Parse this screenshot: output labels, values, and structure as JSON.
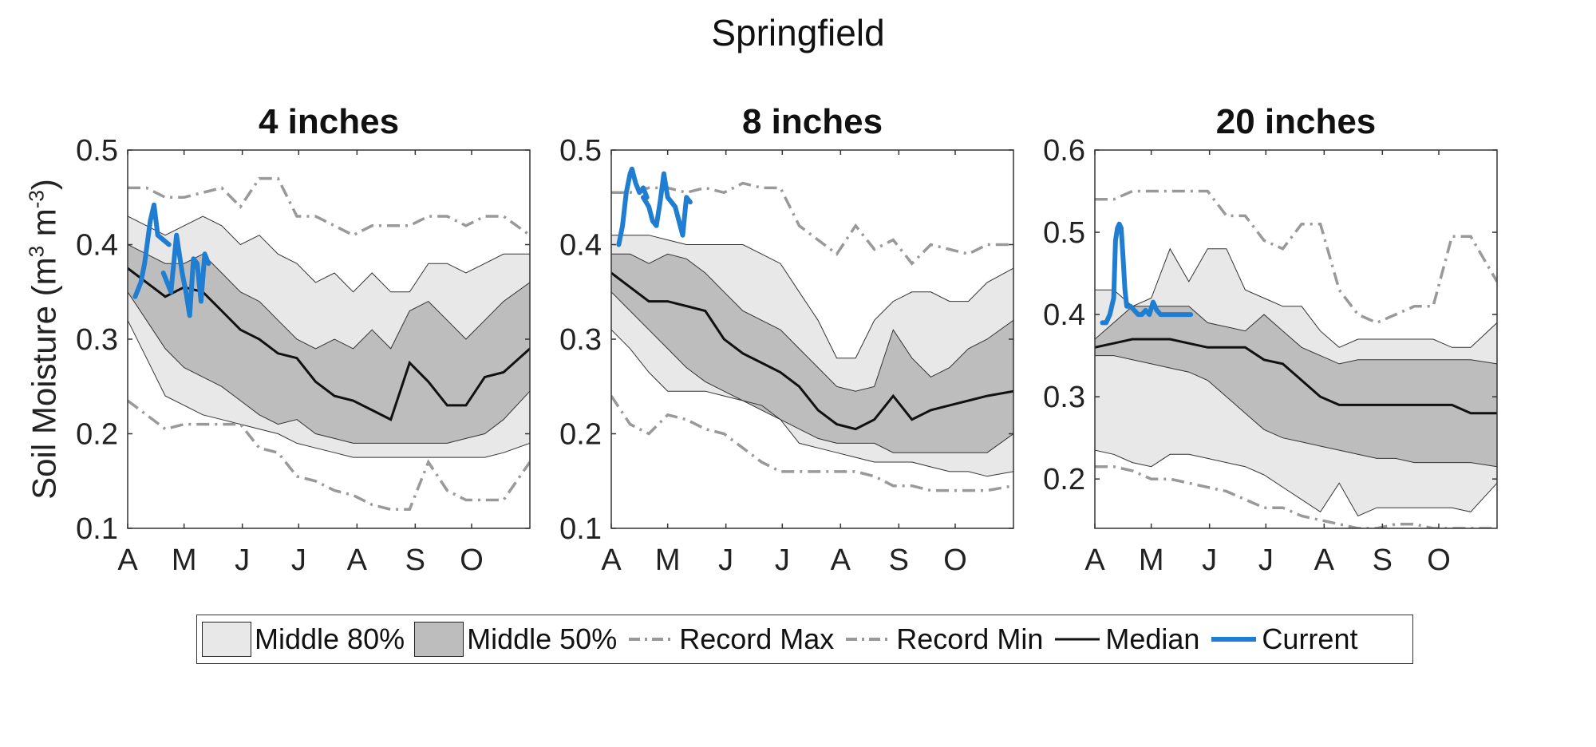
{
  "figure": {
    "title": "Springfield",
    "ylabel_text": "Soil Moisture (m",
    "ylabel_sup1": "3",
    "ylabel_mid": " m",
    "ylabel_sup2": "-3",
    "ylabel_end": ")"
  },
  "legend": [
    {
      "key": "p80",
      "label": "Middle 80%",
      "kind": "box",
      "color": "#e8e8e8"
    },
    {
      "key": "p50",
      "label": "Middle 50%",
      "kind": "box",
      "color": "#bdbdbd"
    },
    {
      "key": "rmax",
      "label": "Record Max",
      "kind": "dashdot",
      "color": "#999999"
    },
    {
      "key": "rmin",
      "label": "Record Min",
      "kind": "dashdot",
      "color": "#999999"
    },
    {
      "key": "median",
      "label": "Median",
      "kind": "line",
      "color": "#111111"
    },
    {
      "key": "current",
      "label": "Current",
      "kind": "thick",
      "color": "#1f7ed1"
    }
  ],
  "chart_data": [
    {
      "type": "area",
      "title": "4 inches",
      "ylim": [
        0.1,
        0.5
      ],
      "yticks": [
        0.1,
        0.2,
        0.3,
        0.4,
        0.5
      ],
      "xlim": [
        0,
        214
      ],
      "xticks": [
        0,
        30,
        61,
        91,
        122,
        153,
        183
      ],
      "xticklabels": [
        "A",
        "M",
        "J",
        "J",
        "A",
        "S",
        "O"
      ],
      "x": [
        0,
        10,
        20,
        30,
        40,
        50,
        60,
        70,
        80,
        90,
        100,
        110,
        120,
        130,
        140,
        150,
        160,
        170,
        180,
        190,
        200,
        214
      ],
      "p90": [
        0.43,
        0.42,
        0.41,
        0.42,
        0.43,
        0.42,
        0.4,
        0.41,
        0.39,
        0.38,
        0.36,
        0.37,
        0.35,
        0.37,
        0.35,
        0.35,
        0.38,
        0.38,
        0.37,
        0.38,
        0.39,
        0.39
      ],
      "p75": [
        0.4,
        0.39,
        0.38,
        0.38,
        0.39,
        0.37,
        0.35,
        0.34,
        0.32,
        0.3,
        0.29,
        0.3,
        0.29,
        0.31,
        0.29,
        0.33,
        0.34,
        0.32,
        0.3,
        0.32,
        0.34,
        0.36
      ],
      "median": [
        0.375,
        0.36,
        0.345,
        0.355,
        0.35,
        0.33,
        0.31,
        0.3,
        0.285,
        0.28,
        0.255,
        0.24,
        0.235,
        0.225,
        0.215,
        0.275,
        0.255,
        0.23,
        0.23,
        0.26,
        0.265,
        0.29
      ],
      "p25": [
        0.35,
        0.32,
        0.29,
        0.27,
        0.26,
        0.25,
        0.235,
        0.22,
        0.21,
        0.215,
        0.2,
        0.195,
        0.19,
        0.19,
        0.19,
        0.19,
        0.19,
        0.19,
        0.195,
        0.2,
        0.215,
        0.245
      ],
      "p10": [
        0.32,
        0.28,
        0.24,
        0.23,
        0.22,
        0.215,
        0.21,
        0.205,
        0.2,
        0.19,
        0.185,
        0.18,
        0.175,
        0.175,
        0.175,
        0.175,
        0.175,
        0.175,
        0.175,
        0.175,
        0.18,
        0.19
      ],
      "record_max": [
        0.46,
        0.46,
        0.45,
        0.45,
        0.455,
        0.46,
        0.44,
        0.47,
        0.47,
        0.43,
        0.43,
        0.42,
        0.41,
        0.42,
        0.42,
        0.42,
        0.43,
        0.43,
        0.42,
        0.43,
        0.43,
        0.41
      ],
      "record_min": [
        0.235,
        0.22,
        0.205,
        0.21,
        0.21,
        0.21,
        0.21,
        0.185,
        0.18,
        0.155,
        0.15,
        0.14,
        0.135,
        0.125,
        0.12,
        0.12,
        0.17,
        0.14,
        0.13,
        0.13,
        0.13,
        0.17
      ],
      "current": [
        [
          4,
          0.345
        ],
        [
          7,
          0.36
        ],
        [
          9,
          0.38
        ],
        [
          12,
          0.425
        ],
        [
          14,
          0.442
        ],
        [
          16,
          0.41
        ],
        [
          19,
          0.405
        ],
        [
          22,
          0.4
        ],
        null,
        [
          19,
          0.37
        ],
        [
          23,
          0.35
        ],
        [
          26,
          0.41
        ],
        [
          29,
          0.37
        ],
        [
          31,
          0.35
        ],
        [
          33,
          0.325
        ],
        [
          35,
          0.385
        ],
        [
          37,
          0.38
        ],
        [
          39,
          0.34
        ],
        [
          41,
          0.39
        ],
        [
          43,
          0.38
        ]
      ]
    },
    {
      "type": "area",
      "title": "8 inches",
      "ylim": [
        0.1,
        0.5
      ],
      "yticks": [
        0.1,
        0.2,
        0.3,
        0.4,
        0.5
      ],
      "xlim": [
        0,
        214
      ],
      "xticks": [
        0,
        30,
        61,
        91,
        122,
        153,
        183
      ],
      "xticklabels": [
        "A",
        "M",
        "J",
        "J",
        "A",
        "S",
        "O"
      ],
      "x": [
        0,
        10,
        20,
        30,
        40,
        50,
        60,
        70,
        80,
        90,
        100,
        110,
        120,
        130,
        140,
        150,
        160,
        170,
        180,
        190,
        200,
        214
      ],
      "p90": [
        0.41,
        0.41,
        0.41,
        0.405,
        0.4,
        0.4,
        0.4,
        0.4,
        0.39,
        0.38,
        0.35,
        0.32,
        0.28,
        0.28,
        0.32,
        0.34,
        0.35,
        0.35,
        0.34,
        0.34,
        0.36,
        0.375
      ],
      "p75": [
        0.39,
        0.39,
        0.38,
        0.39,
        0.385,
        0.37,
        0.35,
        0.33,
        0.32,
        0.31,
        0.29,
        0.27,
        0.25,
        0.245,
        0.25,
        0.31,
        0.28,
        0.26,
        0.27,
        0.29,
        0.3,
        0.32
      ],
      "median": [
        0.37,
        0.355,
        0.34,
        0.34,
        0.335,
        0.33,
        0.3,
        0.285,
        0.275,
        0.265,
        0.25,
        0.225,
        0.21,
        0.205,
        0.215,
        0.24,
        0.215,
        0.225,
        0.23,
        0.235,
        0.24,
        0.245
      ],
      "p25": [
        0.35,
        0.33,
        0.31,
        0.29,
        0.27,
        0.255,
        0.245,
        0.235,
        0.225,
        0.215,
        0.205,
        0.195,
        0.19,
        0.19,
        0.19,
        0.18,
        0.18,
        0.18,
        0.18,
        0.18,
        0.18,
        0.2
      ],
      "p10": [
        0.31,
        0.29,
        0.265,
        0.245,
        0.245,
        0.245,
        0.24,
        0.235,
        0.23,
        0.215,
        0.19,
        0.185,
        0.18,
        0.175,
        0.17,
        0.17,
        0.17,
        0.165,
        0.16,
        0.16,
        0.155,
        0.16
      ],
      "record_max": [
        0.455,
        0.455,
        0.46,
        0.46,
        0.455,
        0.46,
        0.455,
        0.465,
        0.46,
        0.46,
        0.42,
        0.405,
        0.39,
        0.42,
        0.395,
        0.405,
        0.38,
        0.4,
        0.395,
        0.39,
        0.4,
        0.4
      ],
      "record_min": [
        0.24,
        0.21,
        0.2,
        0.22,
        0.215,
        0.205,
        0.2,
        0.185,
        0.17,
        0.16,
        0.16,
        0.16,
        0.16,
        0.16,
        0.155,
        0.145,
        0.145,
        0.14,
        0.14,
        0.14,
        0.14,
        0.145
      ],
      "current": [
        [
          4,
          0.4
        ],
        [
          6,
          0.42
        ],
        [
          8,
          0.455
        ],
        [
          10,
          0.475
        ],
        [
          11,
          0.48
        ],
        [
          13,
          0.465
        ],
        [
          15,
          0.455
        ],
        [
          17,
          0.46
        ],
        [
          19,
          0.45
        ],
        null,
        [
          17,
          0.45
        ],
        [
          20,
          0.44
        ],
        [
          22,
          0.425
        ],
        [
          24,
          0.42
        ],
        [
          26,
          0.445
        ],
        [
          28,
          0.475
        ],
        [
          30,
          0.45
        ],
        [
          32,
          0.445
        ],
        [
          34,
          0.44
        ],
        [
          36,
          0.425
        ],
        [
          38,
          0.41
        ],
        [
          40,
          0.45
        ],
        [
          42,
          0.445
        ]
      ]
    },
    {
      "type": "area",
      "title": "20 inches",
      "ylim": [
        0.14,
        0.6
      ],
      "yticks": [
        0.2,
        0.3,
        0.4,
        0.5,
        0.6
      ],
      "xlim": [
        0,
        214
      ],
      "xticks": [
        0,
        30,
        61,
        91,
        122,
        153,
        183
      ],
      "xticklabels": [
        "A",
        "M",
        "J",
        "J",
        "A",
        "S",
        "O"
      ],
      "x": [
        0,
        10,
        20,
        30,
        40,
        50,
        60,
        70,
        80,
        90,
        100,
        110,
        120,
        130,
        140,
        150,
        160,
        170,
        180,
        190,
        200,
        214
      ],
      "p90": [
        0.43,
        0.43,
        0.41,
        0.42,
        0.48,
        0.44,
        0.48,
        0.48,
        0.43,
        0.42,
        0.41,
        0.41,
        0.38,
        0.36,
        0.37,
        0.37,
        0.37,
        0.37,
        0.37,
        0.36,
        0.36,
        0.39
      ],
      "p75": [
        0.37,
        0.39,
        0.41,
        0.41,
        0.41,
        0.41,
        0.39,
        0.385,
        0.38,
        0.4,
        0.38,
        0.36,
        0.35,
        0.34,
        0.345,
        0.345,
        0.345,
        0.345,
        0.345,
        0.345,
        0.345,
        0.34
      ],
      "median": [
        0.36,
        0.365,
        0.37,
        0.37,
        0.37,
        0.365,
        0.36,
        0.36,
        0.36,
        0.345,
        0.34,
        0.32,
        0.3,
        0.29,
        0.29,
        0.29,
        0.29,
        0.29,
        0.29,
        0.29,
        0.28,
        0.28
      ],
      "p25": [
        0.35,
        0.35,
        0.345,
        0.34,
        0.335,
        0.33,
        0.32,
        0.3,
        0.28,
        0.26,
        0.25,
        0.245,
        0.24,
        0.235,
        0.23,
        0.225,
        0.225,
        0.22,
        0.22,
        0.22,
        0.22,
        0.215
      ],
      "p10": [
        0.235,
        0.23,
        0.22,
        0.215,
        0.23,
        0.23,
        0.225,
        0.22,
        0.215,
        0.205,
        0.19,
        0.175,
        0.16,
        0.195,
        0.155,
        0.165,
        0.165,
        0.165,
        0.165,
        0.165,
        0.16,
        0.195
      ],
      "record_max": [
        0.54,
        0.54,
        0.55,
        0.55,
        0.55,
        0.55,
        0.55,
        0.52,
        0.52,
        0.49,
        0.48,
        0.51,
        0.51,
        0.43,
        0.4,
        0.39,
        0.4,
        0.41,
        0.41,
        0.495,
        0.495,
        0.44
      ],
      "record_min": [
        0.215,
        0.215,
        0.21,
        0.2,
        0.2,
        0.195,
        0.19,
        0.185,
        0.175,
        0.165,
        0.165,
        0.155,
        0.15,
        0.145,
        0.14,
        0.14,
        0.145,
        0.145,
        0.14,
        0.14,
        0.14,
        0.14
      ],
      "current": [
        [
          4,
          0.39
        ],
        [
          6,
          0.39
        ],
        [
          8,
          0.4
        ],
        [
          10,
          0.42
        ],
        [
          11,
          0.49
        ],
        [
          12,
          0.505
        ],
        [
          13,
          0.51
        ],
        [
          14,
          0.505
        ],
        [
          15,
          0.47
        ],
        [
          16,
          0.43
        ],
        [
          17,
          0.41
        ],
        [
          19,
          0.41
        ],
        [
          21,
          0.405
        ],
        [
          23,
          0.4
        ],
        [
          25,
          0.4
        ],
        [
          27,
          0.405
        ],
        [
          29,
          0.4
        ],
        [
          31,
          0.415
        ],
        [
          33,
          0.405
        ],
        [
          35,
          0.4
        ],
        [
          40,
          0.4
        ],
        [
          45,
          0.4
        ],
        [
          51,
          0.4
        ]
      ]
    }
  ]
}
